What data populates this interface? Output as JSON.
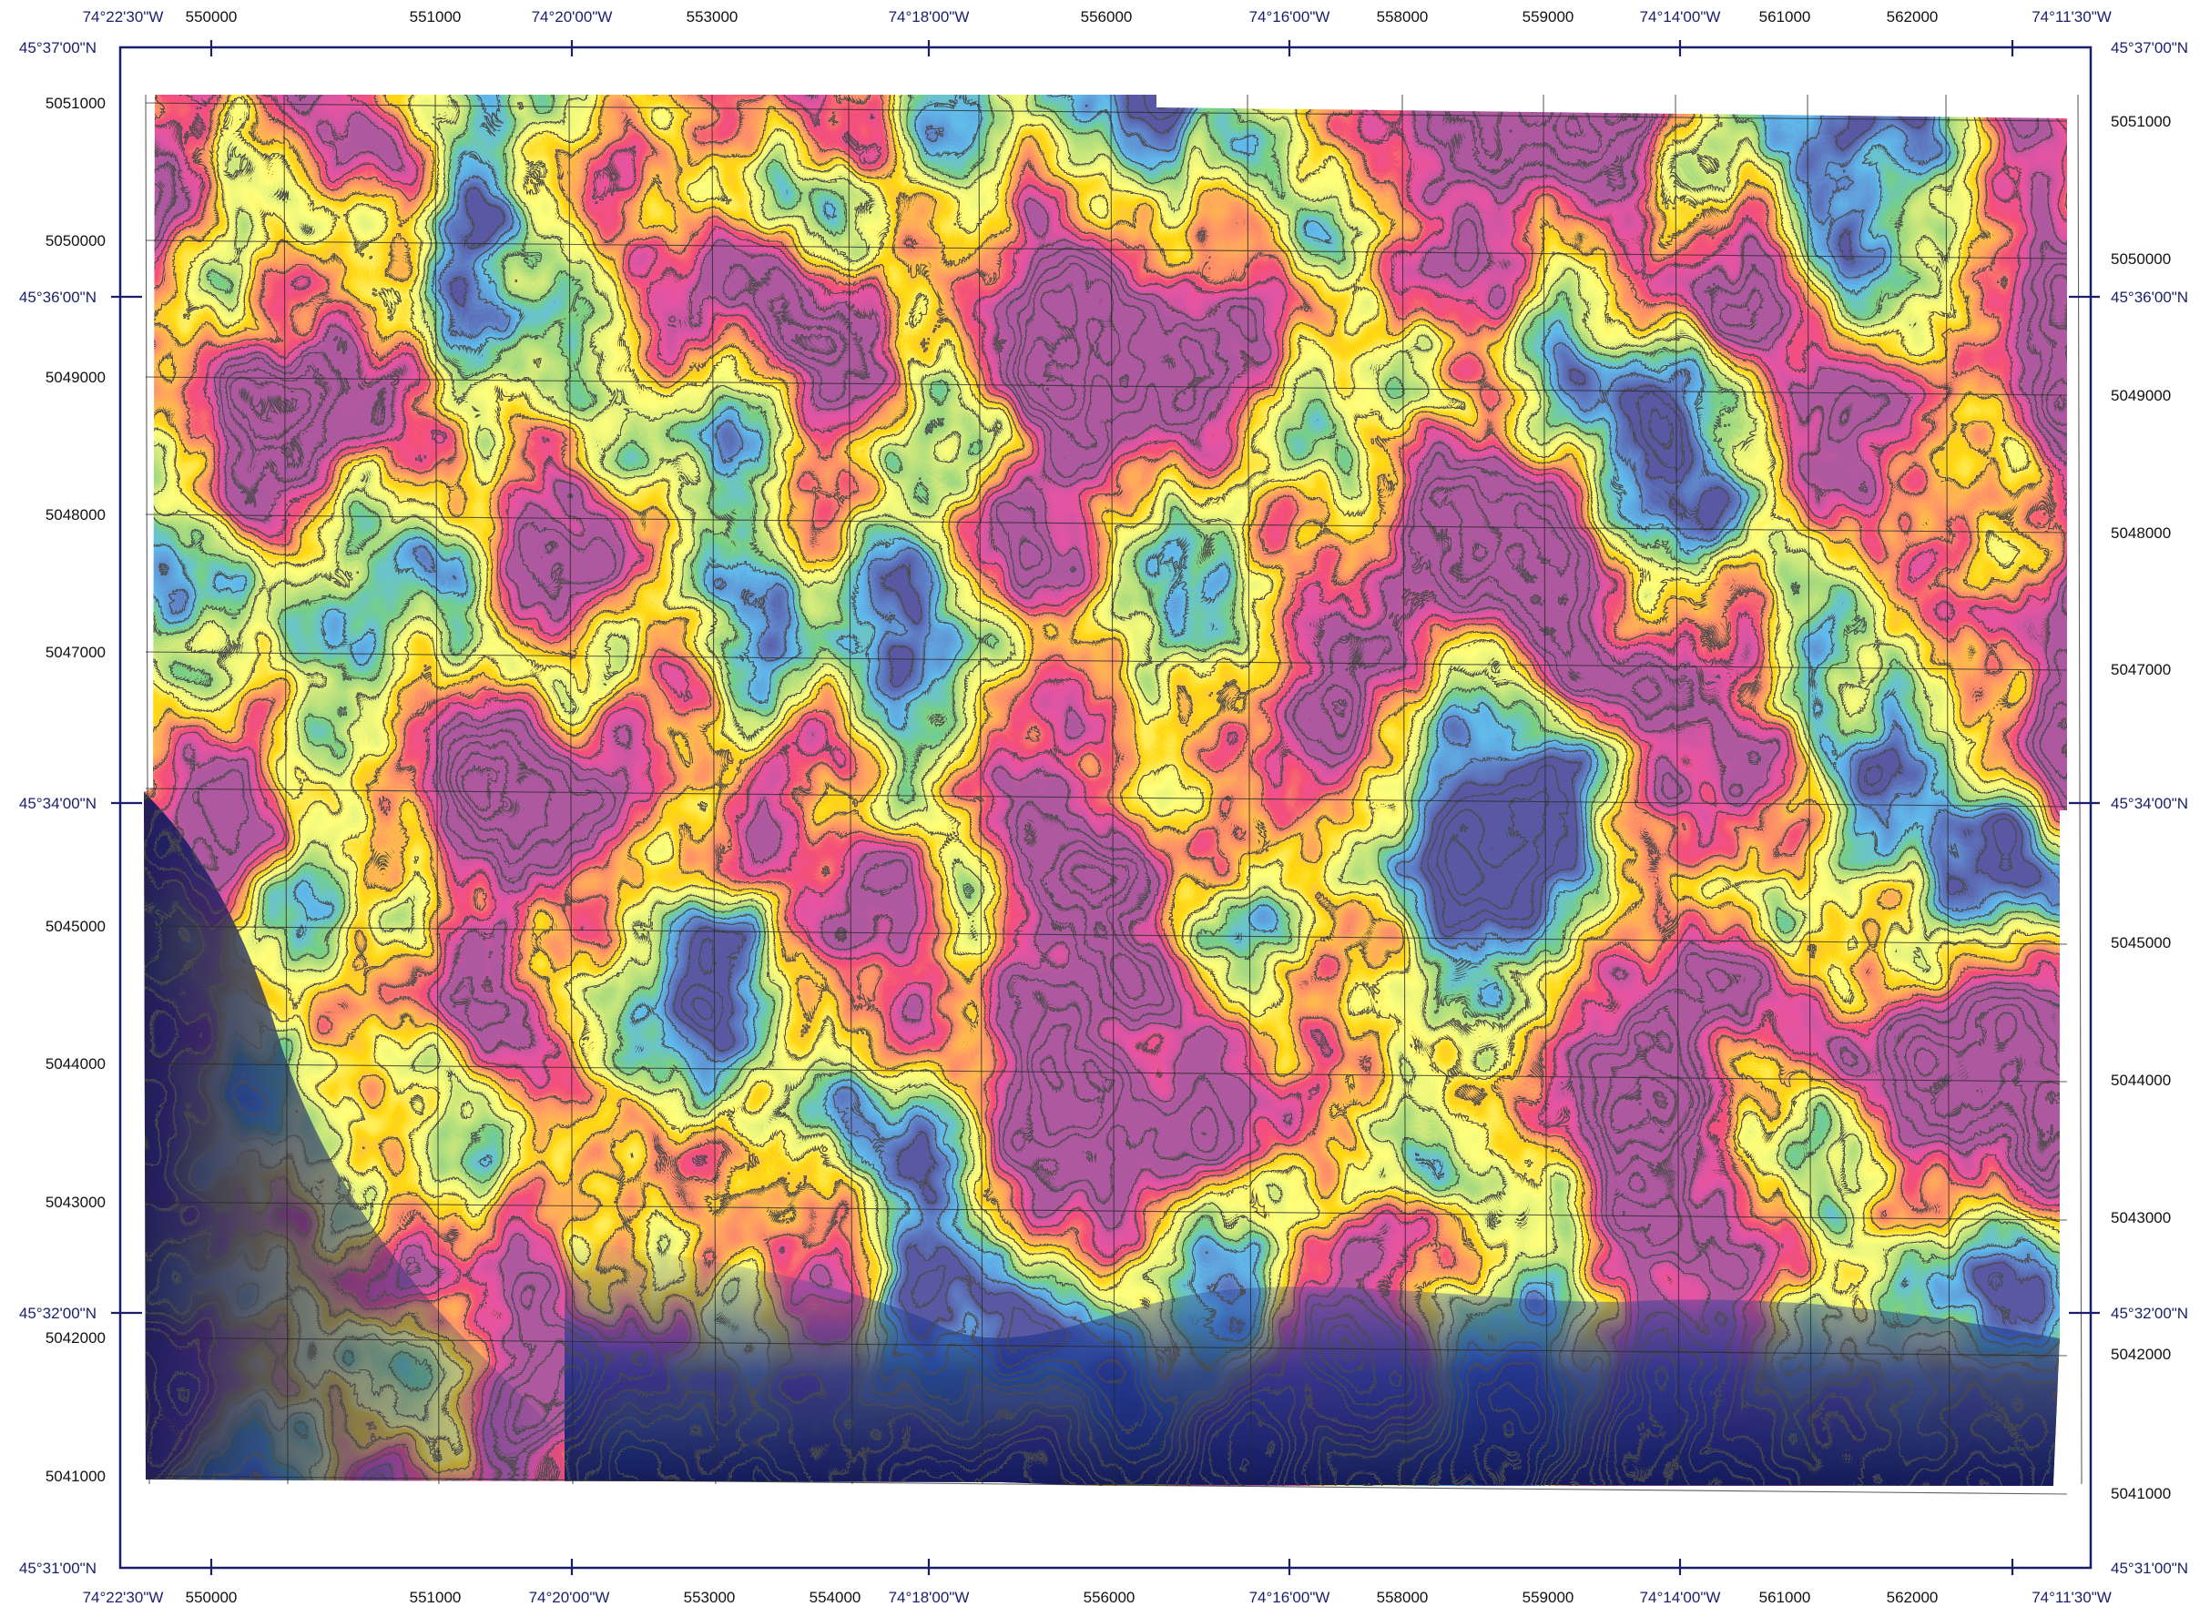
{
  "map": {
    "frame": {
      "west_lon": "74°22'30\"W",
      "east_lon": "74°11'30\"W",
      "north_lat": "45°37'00\"N",
      "south_lat": "45°31'00\"N"
    },
    "top_labels": [
      {
        "kind": "geo",
        "text": "74°22'30\"W"
      },
      {
        "kind": "utm",
        "text": "550000"
      },
      {
        "kind": "utm",
        "text": "551000"
      },
      {
        "kind": "geo",
        "text": "74°20'00\"W"
      },
      {
        "kind": "utm",
        "text": "553000"
      },
      {
        "kind": "geo",
        "text": "74°18'00\"W"
      },
      {
        "kind": "utm",
        "text": "556000"
      },
      {
        "kind": "geo",
        "text": "74°16'00\"W"
      },
      {
        "kind": "utm",
        "text": "558000"
      },
      {
        "kind": "utm",
        "text": "559000"
      },
      {
        "kind": "geo",
        "text": "74°14'00\"W"
      },
      {
        "kind": "utm",
        "text": "561000"
      },
      {
        "kind": "utm",
        "text": "562000"
      },
      {
        "kind": "geo",
        "text": "74°11'30\"W"
      }
    ],
    "bottom_labels": [
      {
        "kind": "geo",
        "text": "74°22'30\"W"
      },
      {
        "kind": "utm",
        "text": "550000"
      },
      {
        "kind": "utm",
        "text": "551000"
      },
      {
        "kind": "geo",
        "text": "74°20'00\"W"
      },
      {
        "kind": "utm",
        "text": "553000"
      },
      {
        "kind": "utm",
        "text": "554000"
      },
      {
        "kind": "geo",
        "text": "74°18'00\"W"
      },
      {
        "kind": "utm",
        "text": "556000"
      },
      {
        "kind": "geo",
        "text": "74°16'00\"W"
      },
      {
        "kind": "utm",
        "text": "558000"
      },
      {
        "kind": "utm",
        "text": "559000"
      },
      {
        "kind": "geo",
        "text": "74°14'00\"W"
      },
      {
        "kind": "utm",
        "text": "561000"
      },
      {
        "kind": "utm",
        "text": "562000"
      },
      {
        "kind": "geo",
        "text": "74°11'30\"W"
      }
    ],
    "left_labels": [
      {
        "kind": "geo",
        "text": "45°37'00\"N"
      },
      {
        "kind": "utm",
        "text": "5051000"
      },
      {
        "kind": "utm",
        "text": "5050000"
      },
      {
        "kind": "geo",
        "text": "45°36'00\"N"
      },
      {
        "kind": "utm",
        "text": "5049000"
      },
      {
        "kind": "utm",
        "text": "5048000"
      },
      {
        "kind": "utm",
        "text": "5047000"
      },
      {
        "kind": "geo",
        "text": "45°34'00\"N"
      },
      {
        "kind": "utm",
        "text": "5045000"
      },
      {
        "kind": "utm",
        "text": "5044000"
      },
      {
        "kind": "utm",
        "text": "5043000"
      },
      {
        "kind": "geo",
        "text": "45°32'00\"N"
      },
      {
        "kind": "utm",
        "text": "5042000"
      },
      {
        "kind": "utm",
        "text": "5041000"
      },
      {
        "kind": "geo",
        "text": "45°31'00\"N"
      }
    ],
    "right_labels": [
      {
        "kind": "geo",
        "text": "45°37'00\"N"
      },
      {
        "kind": "utm",
        "text": "5051000"
      },
      {
        "kind": "utm",
        "text": "5050000"
      },
      {
        "kind": "geo",
        "text": "45°36'00\"N"
      },
      {
        "kind": "utm",
        "text": "5049000"
      },
      {
        "kind": "utm",
        "text": "5048000"
      },
      {
        "kind": "utm",
        "text": "5047000"
      },
      {
        "kind": "geo",
        "text": "45°34'00\"N"
      },
      {
        "kind": "utm",
        "text": "5045000"
      },
      {
        "kind": "utm",
        "text": "5044000"
      },
      {
        "kind": "utm",
        "text": "5043000"
      },
      {
        "kind": "geo",
        "text": "45°32'00\"N"
      },
      {
        "kind": "utm",
        "text": "5042000"
      },
      {
        "kind": "utm",
        "text": "5041000"
      },
      {
        "kind": "geo",
        "text": "45°31'00\"N"
      }
    ],
    "colors": {
      "geo_label": "#1a1f6b",
      "utm_label": "#111111",
      "frame": "#1a1f6b",
      "grid": "#2a2a2a",
      "contour": "#111111",
      "ramp": [
        "#1a1a5e",
        "#1f3f9e",
        "#1e7fd6",
        "#2f9e3a",
        "#9acd32",
        "#ffff33",
        "#ffb300",
        "#ff5a1f",
        "#e8142f",
        "#c8185e",
        "#6a1a5a"
      ]
    }
  }
}
